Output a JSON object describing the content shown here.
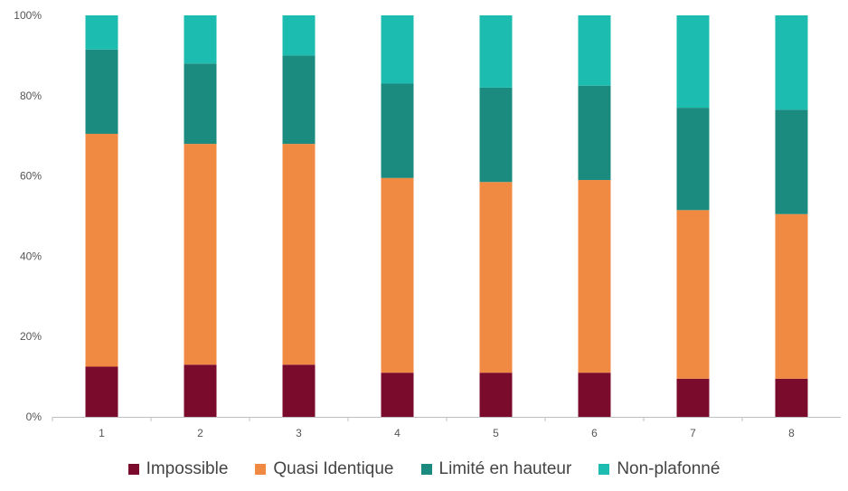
{
  "chart_data": {
    "type": "bar",
    "stacked": "percent",
    "categories": [
      "1",
      "2",
      "3",
      "4",
      "5",
      "6",
      "7",
      "8"
    ],
    "series": [
      {
        "name": "Impossible",
        "color": "#7b0b2c",
        "values": [
          12.5,
          13,
          13,
          11,
          11,
          11,
          9.5,
          9.5
        ]
      },
      {
        "name": "Quasi Identique",
        "color": "#f08a43",
        "values": [
          58,
          55,
          55,
          48.5,
          47.5,
          48,
          42,
          41
        ]
      },
      {
        "name": "Limité en hauteur",
        "color": "#1c8b7f",
        "values": [
          21,
          20,
          22,
          23.5,
          23.5,
          23.5,
          25.5,
          26
        ]
      },
      {
        "name": "Non-plafonné",
        "color": "#1dbcb1",
        "values": [
          8.5,
          12,
          10,
          17,
          18,
          17.5,
          23,
          23.5
        ]
      }
    ],
    "yticks": [
      "0%",
      "20%",
      "40%",
      "60%",
      "80%",
      "100%"
    ],
    "ylim": [
      0,
      100
    ],
    "grid": false,
    "legend_position": "bottom"
  }
}
